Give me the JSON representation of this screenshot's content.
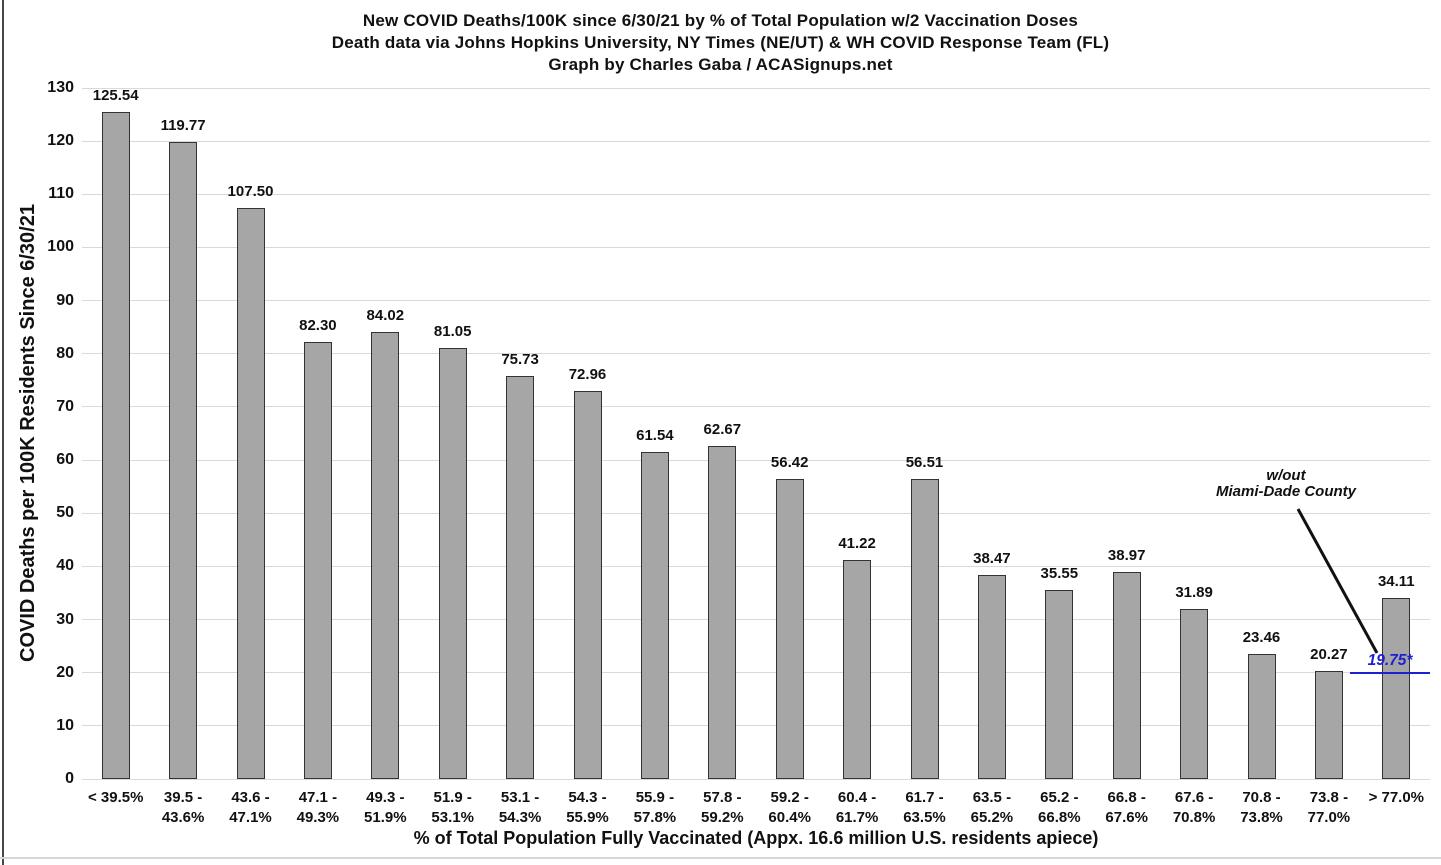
{
  "title": {
    "line1": "New COVID Deaths/100K since 6/30/21 by % of Total Population w/2 Vaccination Doses",
    "line2": "Death data via Johns Hopkins University, NY Times (NE/UT) & WH COVID Response Team (FL)",
    "line3": "Graph by Charles Gaba / ACASignups.net"
  },
  "chart_data": {
    "type": "bar",
    "categories": [
      "< 39.5%",
      "39.5 -\n43.6%",
      "43.6 -\n47.1%",
      "47.1 -\n49.3%",
      "49.3 -\n51.9%",
      "51.9 -\n53.1%",
      "53.1 -\n54.3%",
      "54.3 -\n55.9%",
      "55.9 -\n57.8%",
      "57.8 -\n59.2%",
      "59.2 -\n60.4%",
      "60.4 -\n61.7%",
      "61.7 -\n63.5%",
      "63.5 -\n65.2%",
      "65.2 -\n66.8%",
      "66.8 -\n67.6%",
      "67.6 -\n70.8%",
      "70.8 -\n73.8%",
      "73.8 -\n77.0%",
      "> 77.0%"
    ],
    "values": [
      125.54,
      119.77,
      107.5,
      82.3,
      84.02,
      81.05,
      75.73,
      72.96,
      61.54,
      62.67,
      56.42,
      41.22,
      56.51,
      38.47,
      35.55,
      38.97,
      31.89,
      23.46,
      20.27,
      34.11
    ],
    "title": "New COVID Deaths/100K since 6/30/21 by % of Total Population w/2 Vaccination Doses",
    "xlabel": "% of Total Population Fully Vaccinated (Appx. 16.6 million U.S. residents apiece)",
    "ylabel": "COVID Deaths per 100K Residents Since 6/30/21",
    "ylim": [
      0,
      130
    ],
    "ytick_step": 10,
    "grid": true,
    "legend": "none",
    "bar_color": "#a6a6a6",
    "bar_border_color": "#333333",
    "gridline_color": "#d9d9d9",
    "annotation": {
      "text": "w/out\nMiami-Dade County",
      "value_label": "19.75*",
      "value_color": "#1f1fd0",
      "applies_to_category": "> 77.0%"
    }
  }
}
